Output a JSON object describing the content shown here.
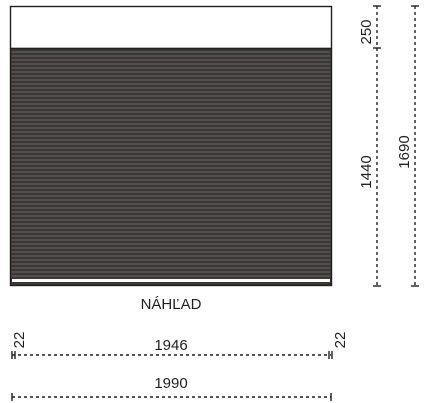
{
  "preview_label": "NÁHĽAD",
  "colors": {
    "slat_dark": "#3a3736",
    "slat_line": "#6a6766",
    "frame": "#1f1f1f",
    "head_box": "#ffffff"
  },
  "dimensions": {
    "horizontal": {
      "left_margin": "22",
      "inner_width": "1946",
      "right_margin": "22",
      "total_width": "1990"
    },
    "vertical": {
      "head_height": "250",
      "curtain_height": "1440",
      "total_height": "1690"
    }
  }
}
